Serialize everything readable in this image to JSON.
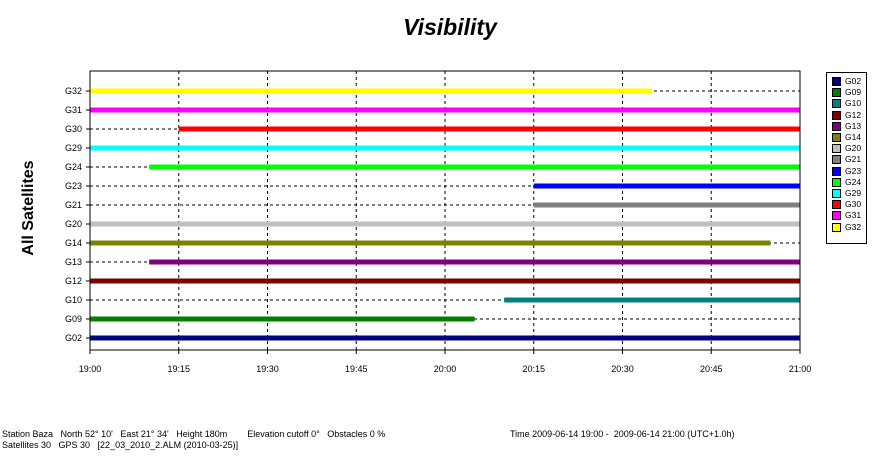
{
  "chart_data": {
    "type": "timeline",
    "title": "Visibility",
    "ylabel": "All Satellites",
    "x_ticks": [
      "19:00",
      "19:15",
      "19:30",
      "19:45",
      "20:00",
      "20:15",
      "20:30",
      "20:45",
      "21:00"
    ],
    "x_range": [
      "19:00",
      "21:00"
    ],
    "grid": true,
    "legend_position": "right",
    "rows": [
      {
        "name": "G32",
        "color": "#ffff00",
        "start": "19:00",
        "end": "20:35"
      },
      {
        "name": "G31",
        "color": "#ff00ff",
        "start": "19:00",
        "end": "21:00"
      },
      {
        "name": "G30",
        "color": "#ff0000",
        "start": "19:15",
        "end": "21:00"
      },
      {
        "name": "G29",
        "color": "#00ffff",
        "start": "19:00",
        "end": "21:00"
      },
      {
        "name": "G24",
        "color": "#00ff00",
        "start": "19:10",
        "end": "21:00"
      },
      {
        "name": "G23",
        "color": "#0000ff",
        "start": "20:15",
        "end": "21:00"
      },
      {
        "name": "G21",
        "color": "#808080",
        "start": "20:15",
        "end": "21:00"
      },
      {
        "name": "G20",
        "color": "#c0c0c0",
        "start": "19:00",
        "end": "21:00"
      },
      {
        "name": "G14",
        "color": "#808000",
        "start": "19:00",
        "end": "20:55"
      },
      {
        "name": "G13",
        "color": "#800080",
        "start": "19:10",
        "end": "21:00"
      },
      {
        "name": "G12",
        "color": "#800000",
        "start": "19:00",
        "end": "21:00"
      },
      {
        "name": "G10",
        "color": "#008080",
        "start": "20:10",
        "end": "21:00"
      },
      {
        "name": "G09",
        "color": "#008000",
        "start": "19:00",
        "end": "20:05"
      },
      {
        "name": "G02",
        "color": "#000080",
        "start": "19:00",
        "end": "21:00"
      }
    ],
    "legend": [
      {
        "name": "G02",
        "color": "#000080"
      },
      {
        "name": "G09",
        "color": "#008000"
      },
      {
        "name": "G10",
        "color": "#008080"
      },
      {
        "name": "G12",
        "color": "#800000"
      },
      {
        "name": "G13",
        "color": "#800080"
      },
      {
        "name": "G14",
        "color": "#808000"
      },
      {
        "name": "G20",
        "color": "#c0c0c0"
      },
      {
        "name": "G21",
        "color": "#808080"
      },
      {
        "name": "G23",
        "color": "#0000ff"
      },
      {
        "name": "G24",
        "color": "#00ff00"
      },
      {
        "name": "G29",
        "color": "#00ffff"
      },
      {
        "name": "G30",
        "color": "#ff0000"
      },
      {
        "name": "G31",
        "color": "#ff00ff"
      },
      {
        "name": "G32",
        "color": "#ffff00"
      }
    ]
  },
  "footer": {
    "line1_left": "Station Baza   North 52° 10'   East 21° 34'   Height 180m        Elevation cutoff 0°   Obstacles 0 %",
    "line1_right": "Time 2009-06-14 19:00 -  2009-06-14 21:00 (UTC+1.0h)",
    "line2_left": "Satellites 30   GPS 30   [22_03_2010_2.ALM (2010-03-25)]"
  }
}
